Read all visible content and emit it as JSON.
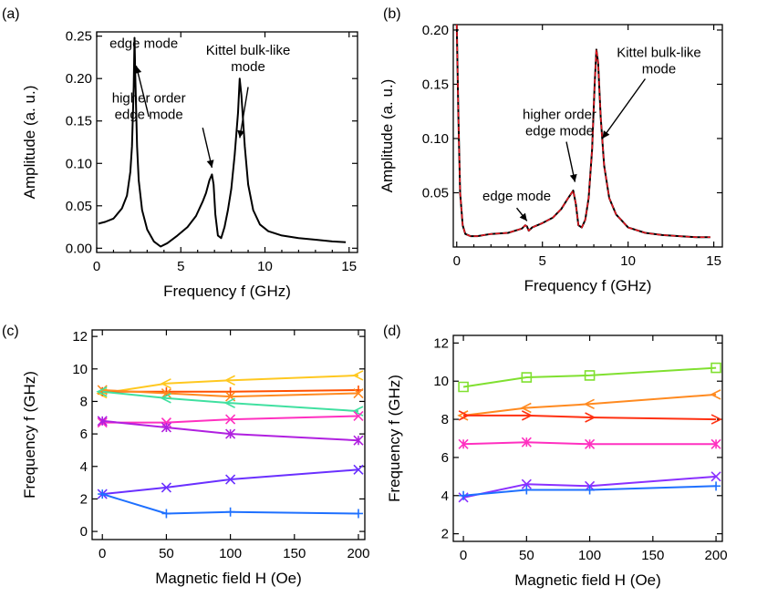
{
  "figure": {
    "description_panels": [
      "(a)",
      "(b)",
      "(c)",
      "(d)"
    ]
  },
  "chart_data": [
    {
      "id": "a",
      "panel_label": "(a)",
      "type": "line",
      "xlabel": "Frequency f (GHz)",
      "ylabel": "Amplitude (a. u.)",
      "xlim": [
        0,
        15.5
      ],
      "ylim": [
        -0.005,
        0.255
      ],
      "xticks": [
        0,
        5,
        10,
        15
      ],
      "yticks": [
        0.0,
        0.05,
        0.1,
        0.15,
        0.2,
        0.25
      ],
      "ytick_labels": [
        "0.00",
        "0.05",
        "0.10",
        "0.15",
        "0.20",
        "0.25"
      ],
      "series": [
        {
          "name": "spectrum",
          "color": "#000000",
          "x": [
            0.1,
            0.5,
            1.0,
            1.5,
            1.8,
            2.0,
            2.1,
            2.2,
            2.25,
            2.3,
            2.4,
            2.5,
            2.7,
            3.0,
            3.4,
            3.8,
            4.2,
            4.8,
            5.4,
            5.9,
            6.3,
            6.5,
            6.7,
            6.85,
            6.95,
            7.05,
            7.2,
            7.4,
            7.6,
            7.8,
            8.0,
            8.2,
            8.4,
            8.5,
            8.6,
            8.8,
            9.0,
            9.3,
            9.7,
            10.2,
            11.0,
            12.0,
            13.0,
            14.0,
            14.8
          ],
          "y": [
            0.029,
            0.031,
            0.035,
            0.047,
            0.062,
            0.09,
            0.12,
            0.19,
            0.248,
            0.2,
            0.12,
            0.08,
            0.045,
            0.022,
            0.008,
            0.002,
            0.006,
            0.015,
            0.025,
            0.038,
            0.055,
            0.065,
            0.08,
            0.087,
            0.075,
            0.04,
            0.015,
            0.012,
            0.025,
            0.045,
            0.07,
            0.11,
            0.16,
            0.2,
            0.18,
            0.12,
            0.075,
            0.045,
            0.028,
            0.02,
            0.015,
            0.012,
            0.01,
            0.008,
            0.007
          ]
        }
      ],
      "annotations": [
        {
          "lines": [
            "edge mode"
          ],
          "x": 2.8,
          "y": 0.236
        },
        {
          "lines": [
            "higher order",
            "edge mode"
          ],
          "x": 3.1,
          "y": 0.172
        },
        {
          "lines": [
            "Kittel bulk-like",
            "mode"
          ],
          "x": 9.0,
          "y": 0.228
        }
      ]
    },
    {
      "id": "b",
      "panel_label": "(b)",
      "type": "line",
      "xlabel": "Frequency f (GHz)",
      "ylabel": "Amplitude (a. u.)",
      "xlim": [
        -0.2,
        15.5
      ],
      "ylim": [
        0.0,
        0.205
      ],
      "xticks": [
        0,
        5,
        10,
        15
      ],
      "yticks": [
        0.05,
        0.1,
        0.15,
        0.2
      ],
      "ytick_labels": [
        "0.05",
        "0.10",
        "0.15",
        "0.20"
      ],
      "series": [
        {
          "name": "simulation",
          "color": "#000000",
          "x": [
            0.0,
            0.1,
            0.2,
            0.35,
            0.5,
            0.8,
            1.2,
            2.0,
            3.0,
            3.8,
            4.0,
            4.1,
            4.2,
            4.4,
            5.0,
            5.6,
            6.1,
            6.5,
            6.8,
            6.95,
            7.1,
            7.3,
            7.5,
            7.7,
            7.9,
            8.05,
            8.15,
            8.25,
            8.4,
            8.6,
            8.9,
            9.3,
            10.0,
            11.0,
            12.0,
            13.0,
            14.0,
            14.8
          ],
          "y": [
            0.205,
            0.12,
            0.05,
            0.02,
            0.012,
            0.01,
            0.01,
            0.012,
            0.013,
            0.017,
            0.02,
            0.019,
            0.015,
            0.018,
            0.022,
            0.027,
            0.035,
            0.045,
            0.052,
            0.04,
            0.02,
            0.018,
            0.025,
            0.045,
            0.09,
            0.15,
            0.182,
            0.17,
            0.12,
            0.075,
            0.045,
            0.03,
            0.018,
            0.013,
            0.011,
            0.01,
            0.009,
            0.009
          ]
        },
        {
          "name": "fit",
          "color": "#e8141e",
          "x": [
            0.0,
            0.1,
            0.2,
            0.35,
            0.5,
            0.8,
            1.2,
            2.0,
            3.0,
            3.8,
            4.0,
            4.1,
            4.2,
            4.4,
            5.0,
            5.6,
            6.1,
            6.5,
            6.8,
            6.95,
            7.1,
            7.3,
            7.5,
            7.7,
            7.9,
            8.05,
            8.15,
            8.25,
            8.4,
            8.6,
            8.9,
            9.3,
            10.0,
            11.0,
            12.0,
            13.0,
            14.0,
            14.8
          ],
          "y": [
            0.205,
            0.12,
            0.05,
            0.02,
            0.012,
            0.01,
            0.01,
            0.012,
            0.013,
            0.017,
            0.02,
            0.019,
            0.015,
            0.018,
            0.022,
            0.027,
            0.035,
            0.045,
            0.052,
            0.04,
            0.02,
            0.018,
            0.025,
            0.045,
            0.09,
            0.15,
            0.182,
            0.17,
            0.12,
            0.075,
            0.045,
            0.03,
            0.018,
            0.013,
            0.011,
            0.01,
            0.009,
            0.009
          ]
        }
      ],
      "annotations": [
        {
          "lines": [
            "edge mode"
          ],
          "x": 3.5,
          "y": 0.043
        },
        {
          "lines": [
            "higher order",
            "edge mode"
          ],
          "x": 6.0,
          "y": 0.118
        },
        {
          "lines": [
            "Kittel bulk-like",
            "mode"
          ],
          "x": 11.8,
          "y": 0.175
        }
      ]
    },
    {
      "id": "c",
      "panel_label": "(c)",
      "type": "line",
      "xlabel": "Magnetic field H (Oe)",
      "ylabel": "Frequency f (GHz)",
      "xlim": [
        -8,
        205
      ],
      "ylim": [
        -0.5,
        12.4
      ],
      "xticks": [
        0,
        50,
        100,
        150,
        200
      ],
      "yticks": [
        0,
        2,
        4,
        6,
        8,
        10,
        12
      ],
      "x": [
        0,
        50,
        100,
        200
      ],
      "series": [
        {
          "name": "mode-1",
          "color": "#ffc820",
          "values": [
            8.5,
            9.1,
            9.3,
            9.6
          ]
        },
        {
          "name": "mode-2",
          "color": "#ff5000",
          "values": [
            8.6,
            8.6,
            8.6,
            8.7
          ]
        },
        {
          "name": "mode-3",
          "color": "#ff8a20",
          "values": [
            8.7,
            8.5,
            8.3,
            8.5
          ]
        },
        {
          "name": "mode-4",
          "color": "#40e0a0",
          "values": [
            8.6,
            8.2,
            7.9,
            7.4
          ]
        },
        {
          "name": "mode-5",
          "color": "#ff30c0",
          "values": [
            6.7,
            6.7,
            6.9,
            7.1
          ]
        },
        {
          "name": "mode-6",
          "color": "#b020e0",
          "values": [
            6.8,
            6.4,
            6.0,
            5.6
          ]
        },
        {
          "name": "mode-7",
          "color": "#6a30ff",
          "values": [
            2.3,
            2.7,
            3.2,
            3.8
          ]
        },
        {
          "name": "mode-8",
          "color": "#1e70ff",
          "values": [
            2.3,
            1.1,
            1.2,
            1.1
          ]
        }
      ]
    },
    {
      "id": "d",
      "panel_label": "(d)",
      "type": "line",
      "xlabel": "Magnetic field H (Oe)",
      "ylabel": "Frequency f (GHz)",
      "xlim": [
        -8,
        205
      ],
      "ylim": [
        1.6,
        12.4
      ],
      "xticks": [
        0,
        50,
        100,
        150,
        200
      ],
      "yticks": [
        2,
        4,
        6,
        8,
        10,
        12
      ],
      "x": [
        0,
        50,
        100,
        200
      ],
      "series": [
        {
          "name": "mode-1",
          "color": "#80e030",
          "values": [
            9.7,
            10.2,
            10.3,
            10.7
          ]
        },
        {
          "name": "mode-2",
          "color": "#ff8a20",
          "values": [
            8.2,
            8.6,
            8.8,
            9.3
          ]
        },
        {
          "name": "mode-3",
          "color": "#ff3010",
          "values": [
            8.2,
            8.2,
            8.1,
            8.0
          ]
        },
        {
          "name": "mode-4",
          "color": "#ff30c0",
          "values": [
            6.7,
            6.8,
            6.7,
            6.7
          ]
        },
        {
          "name": "mode-5",
          "color": "#8a30ff",
          "values": [
            3.9,
            4.6,
            4.5,
            5.0
          ]
        },
        {
          "name": "mode-6",
          "color": "#1e70ff",
          "values": [
            4.0,
            4.3,
            4.3,
            4.5
          ]
        }
      ]
    }
  ]
}
